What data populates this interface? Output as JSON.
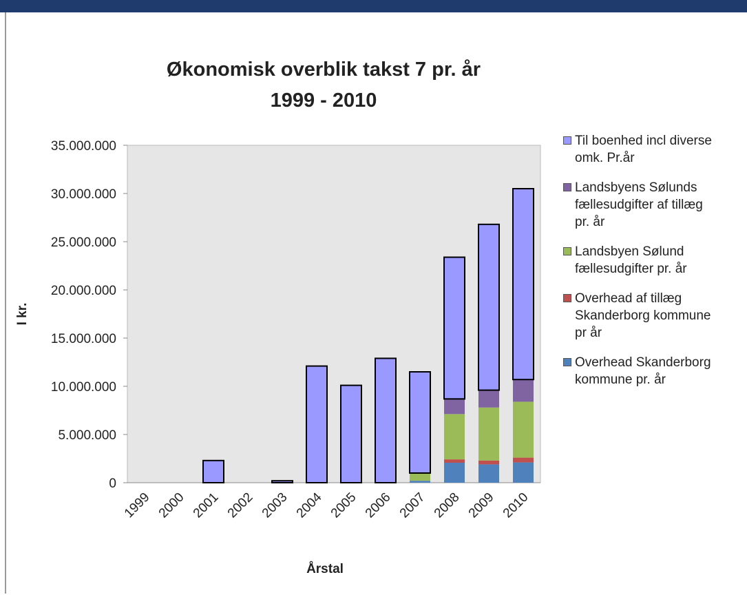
{
  "chart_data": {
    "type": "stacked_bar",
    "title": [
      "Økonomisk overblik takst 7 pr. år",
      "1999 - 2010"
    ],
    "x_label": "Årstal",
    "y_label": "I kr.",
    "categories": [
      "1999",
      "2000",
      "2001",
      "2002",
      "2003",
      "2004",
      "2005",
      "2006",
      "2007",
      "2008",
      "2009",
      "2010"
    ],
    "series": [
      {
        "name": "Overhead Skanderborg kommune pr. år",
        "color": "#4f81bd",
        "values": [
          0,
          0,
          0,
          0,
          0,
          0,
          0,
          0,
          200000,
          2070000,
          1900000,
          2100000
        ]
      },
      {
        "name": "Overhead af tillæg Skanderborg kommune pr år",
        "color": "#c0504d",
        "values": [
          0,
          0,
          0,
          0,
          0,
          0,
          0,
          0,
          0,
          350000,
          400000,
          500000
        ]
      },
      {
        "name": "Landsbyen Sølund fællesudgifter pr. år",
        "color": "#9bbb59",
        "values": [
          0,
          0,
          0,
          0,
          0,
          0,
          0,
          0,
          800000,
          4700000,
          5500000,
          5800000
        ]
      },
      {
        "name": "Landsbyens Sølunds fællesudgifter af tillæg pr. år",
        "color": "#8064a2",
        "values": [
          0,
          0,
          0,
          0,
          0,
          0,
          0,
          0,
          0,
          1570000,
          1800000,
          2300000
        ]
      },
      {
        "name": "Til boenhed incl diverse omk. Pr.år",
        "color": "#9999ff",
        "values": [
          0,
          0,
          2300000,
          0,
          200000,
          12100000,
          10100000,
          12900000,
          10500000,
          14700000,
          17200000,
          19800000
        ]
      }
    ],
    "ylim": [
      0,
      35000000
    ],
    "yticks": [
      0,
      {
        "value": 5000000,
        "label": "5.000.000"
      },
      {
        "value": 10000000,
        "label": "10.000.000"
      },
      {
        "value": 15000000,
        "label": "15.000.000"
      },
      {
        "value": 20000000,
        "label": "20.000.000"
      },
      {
        "value": 25000000,
        "label": "25.000.000"
      },
      {
        "value": 30000000,
        "label": "30.000.000"
      },
      {
        "value": 35000000,
        "label": "35.000.000"
      }
    ],
    "legend": "right"
  }
}
